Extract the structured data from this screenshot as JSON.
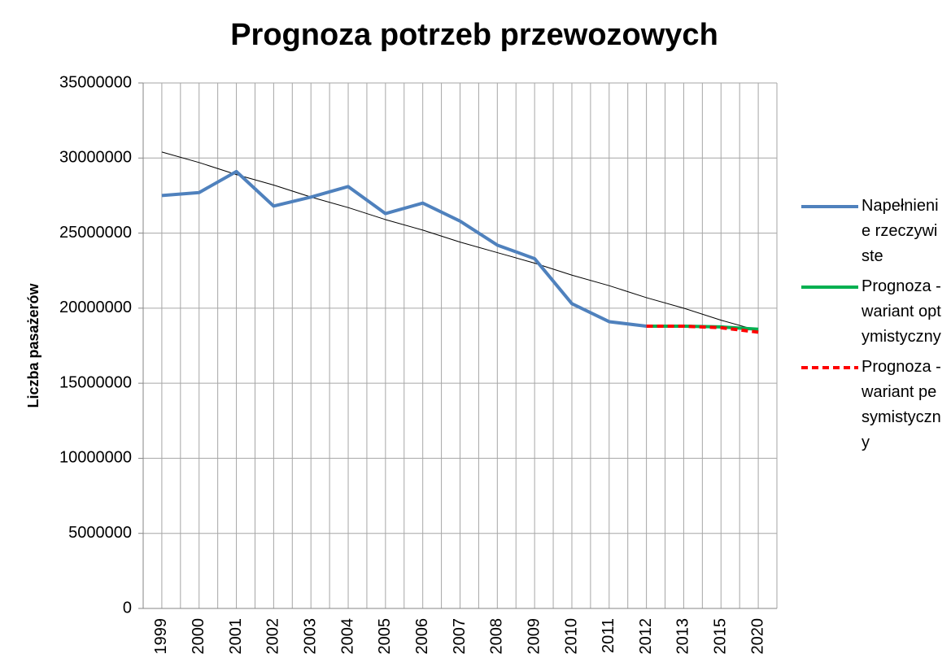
{
  "chart_data": {
    "type": "line",
    "title": "Prognoza potrzeb przewozowych",
    "y_label": "Liczba pasażerów",
    "categories": [
      "1999",
      "2000",
      "2001",
      "2002",
      "2003",
      "2004",
      "2005",
      "2006",
      "2007",
      "2008",
      "2009",
      "2010",
      "2011",
      "2012",
      "2013",
      "2015",
      "2020"
    ],
    "series": [
      {
        "name": "Napełnienie rzeczywiste",
        "color": "#4f81bd",
        "values": [
          27500000,
          27700000,
          29100000,
          26800000,
          27400000,
          28100000,
          26300000,
          27000000,
          25800000,
          24200000,
          23300000,
          20300000,
          19100000,
          18800000,
          null,
          null,
          null
        ]
      },
      {
        "name": "Prognoza - wariant optymistyczny",
        "color": "#00b050",
        "values": [
          null,
          null,
          null,
          null,
          null,
          null,
          null,
          null,
          null,
          null,
          null,
          null,
          null,
          18800000,
          18800000,
          18750000,
          18600000
        ]
      },
      {
        "name": "Prognoza - wariant pesymistyczny",
        "color": "#ff0000",
        "dashed": true,
        "values": [
          null,
          null,
          null,
          null,
          null,
          null,
          null,
          null,
          null,
          null,
          null,
          null,
          null,
          18800000,
          18800000,
          18700000,
          18400000
        ]
      },
      {
        "color": "#000000",
        "thin": true,
        "values": [
          30400000,
          29700000,
          28900000,
          28200000,
          27400000,
          26700000,
          25900000,
          25200000,
          24400000,
          23700000,
          23000000,
          22200000,
          21500000,
          20700000,
          20000000,
          19200000,
          18500000
        ]
      }
    ],
    "ylim": [
      0,
      35000000
    ],
    "yticks": [
      0,
      5000000,
      10000000,
      15000000,
      20000000,
      25000000,
      30000000,
      35000000
    ],
    "grid": true,
    "legend": "right"
  }
}
